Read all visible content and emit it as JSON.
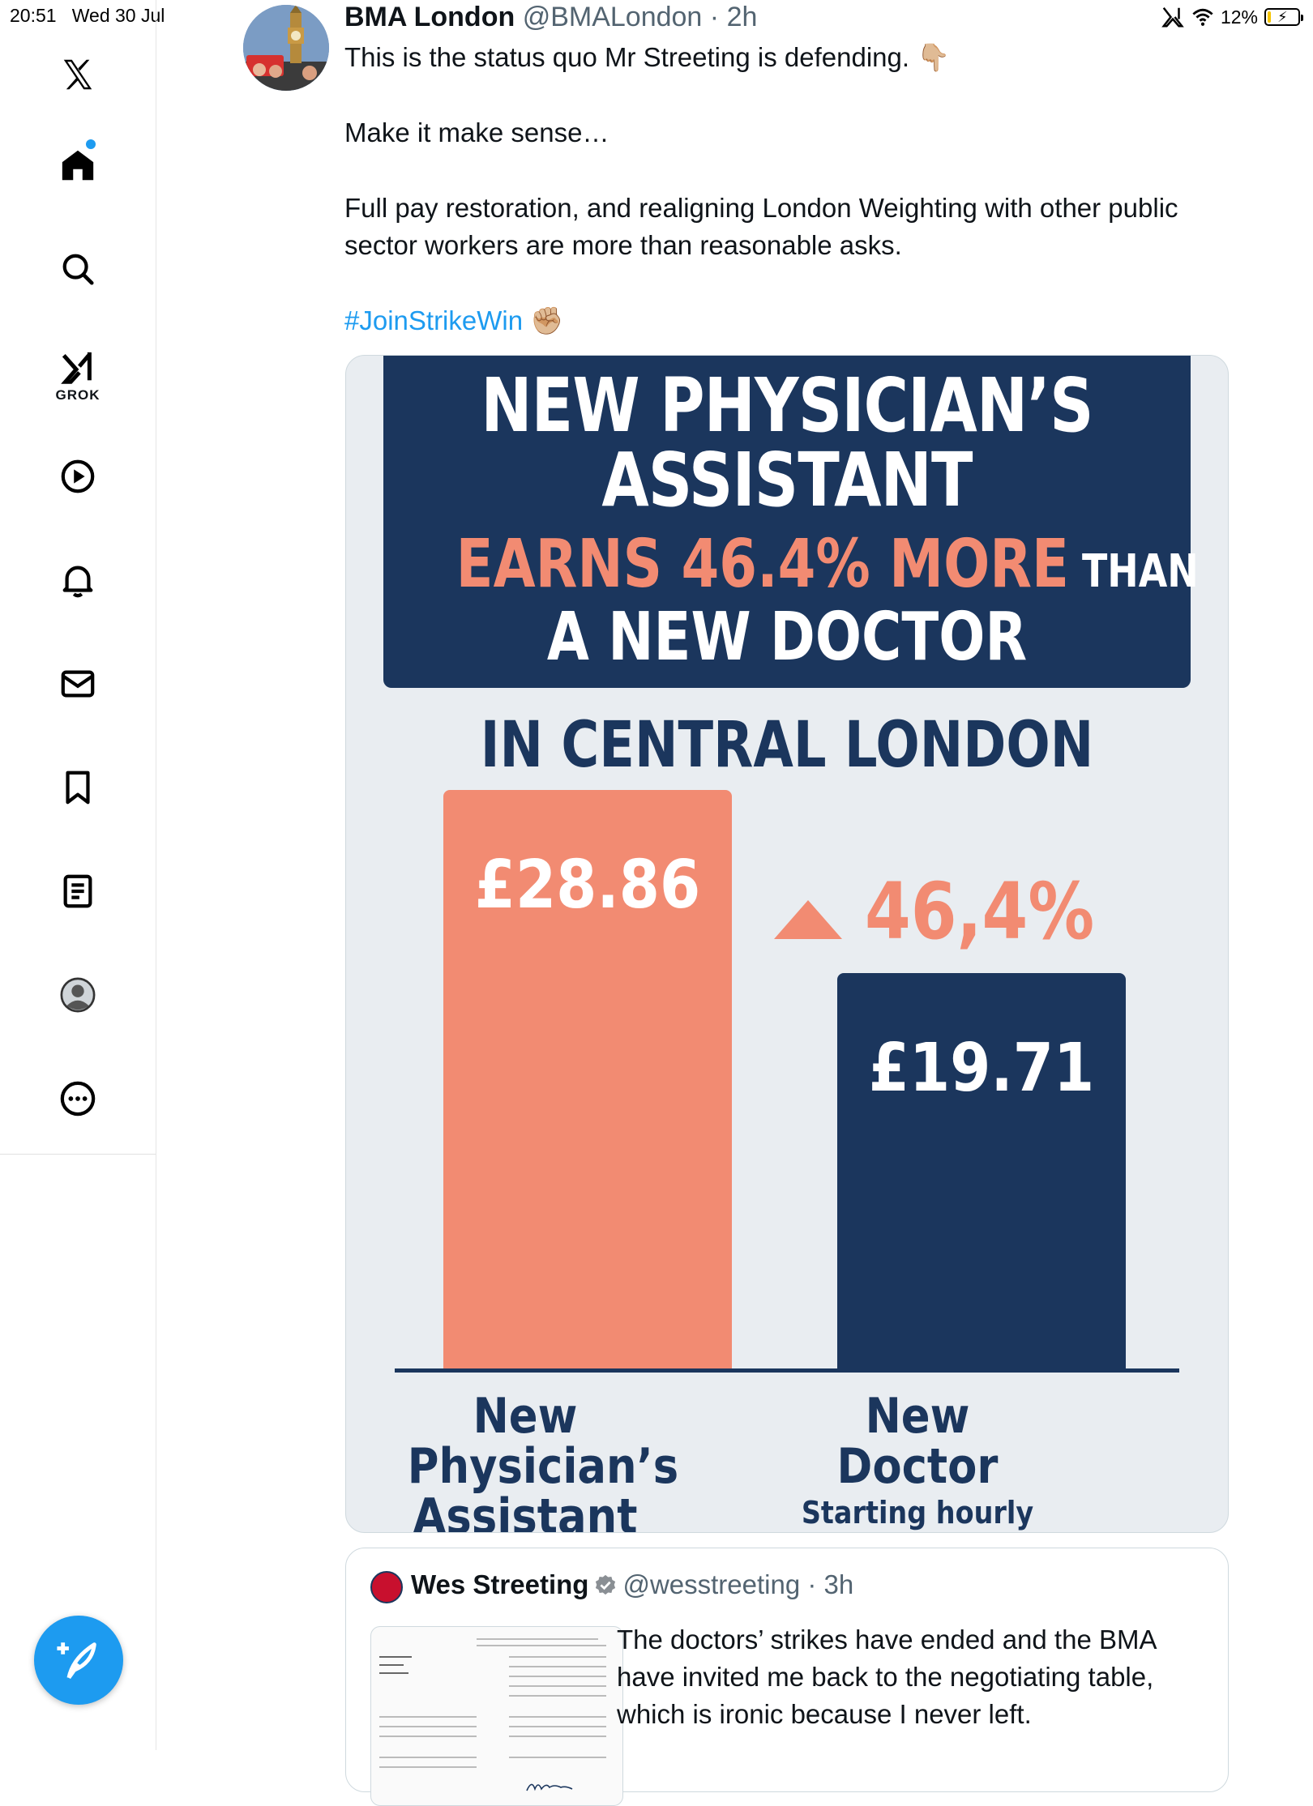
{
  "status_bar": {
    "time": "20:51",
    "date": "Wed 30 Jul",
    "battery": "12%"
  },
  "sidebar": {
    "grok_label": "GROK",
    "icons": [
      "x-logo-icon",
      "home-icon",
      "search-icon",
      "grok-icon",
      "video-icon",
      "notifications-icon",
      "messages-icon",
      "bookmarks-icon",
      "lists-icon",
      "profile-icon",
      "more-icon"
    ],
    "accent": "#1d9bf0"
  },
  "tweet": {
    "name": "BMA London",
    "handle": "@BMALondon",
    "time": "· 2h",
    "text_line1": "This is the status quo Mr Streeting is defending. 👇🏼",
    "text_line2": "Make it make sense…",
    "text_line3": "Full pay restoration, and realigning London Weighting with other public sector workers are more than reasonable asks.",
    "hashtag": "#JoinStrikeWin",
    "hashtag_emoji": "✊🏼"
  },
  "infographic": {
    "title_line1": "NEW PHYSICIAN’S",
    "title_line2": "ASSISTANT",
    "title_accent": "EARNS 46.4% MORE",
    "title_than": " THAN",
    "title_line4": "A NEW DOCTOR",
    "subtitle": "IN CENTRAL LONDON",
    "delta_label": "46,4%",
    "colors": {
      "navy": "#1b365d",
      "salmon": "#f28b72",
      "background": "#e9edf1"
    }
  },
  "chart_data": {
    "type": "bar",
    "categories": [
      "New Physician’s Assistant",
      "New Doctor"
    ],
    "values": [
      28.86,
      19.71
    ],
    "value_labels": [
      "£28.86",
      "£19.71"
    ],
    "category_sublabels": [
      "",
      "Starting hourly rate"
    ],
    "title": "NEW PHYSICIAN’S ASSISTANT EARNS 46.4% MORE THAN A NEW DOCTOR",
    "subtitle": "IN CENTRAL LONDON",
    "annotation": "46,4%",
    "ylim": [
      0,
      29.5
    ],
    "colors": [
      "#f28b72",
      "#1b365d"
    ]
  },
  "quoted_tweet": {
    "name": "Wes Streeting",
    "handle": "@wesstreeting",
    "time": "· 3h",
    "text": "The doctors’ strikes have ended and the BMA have invited me back to the negotiating table, which is ironic because I never left."
  }
}
